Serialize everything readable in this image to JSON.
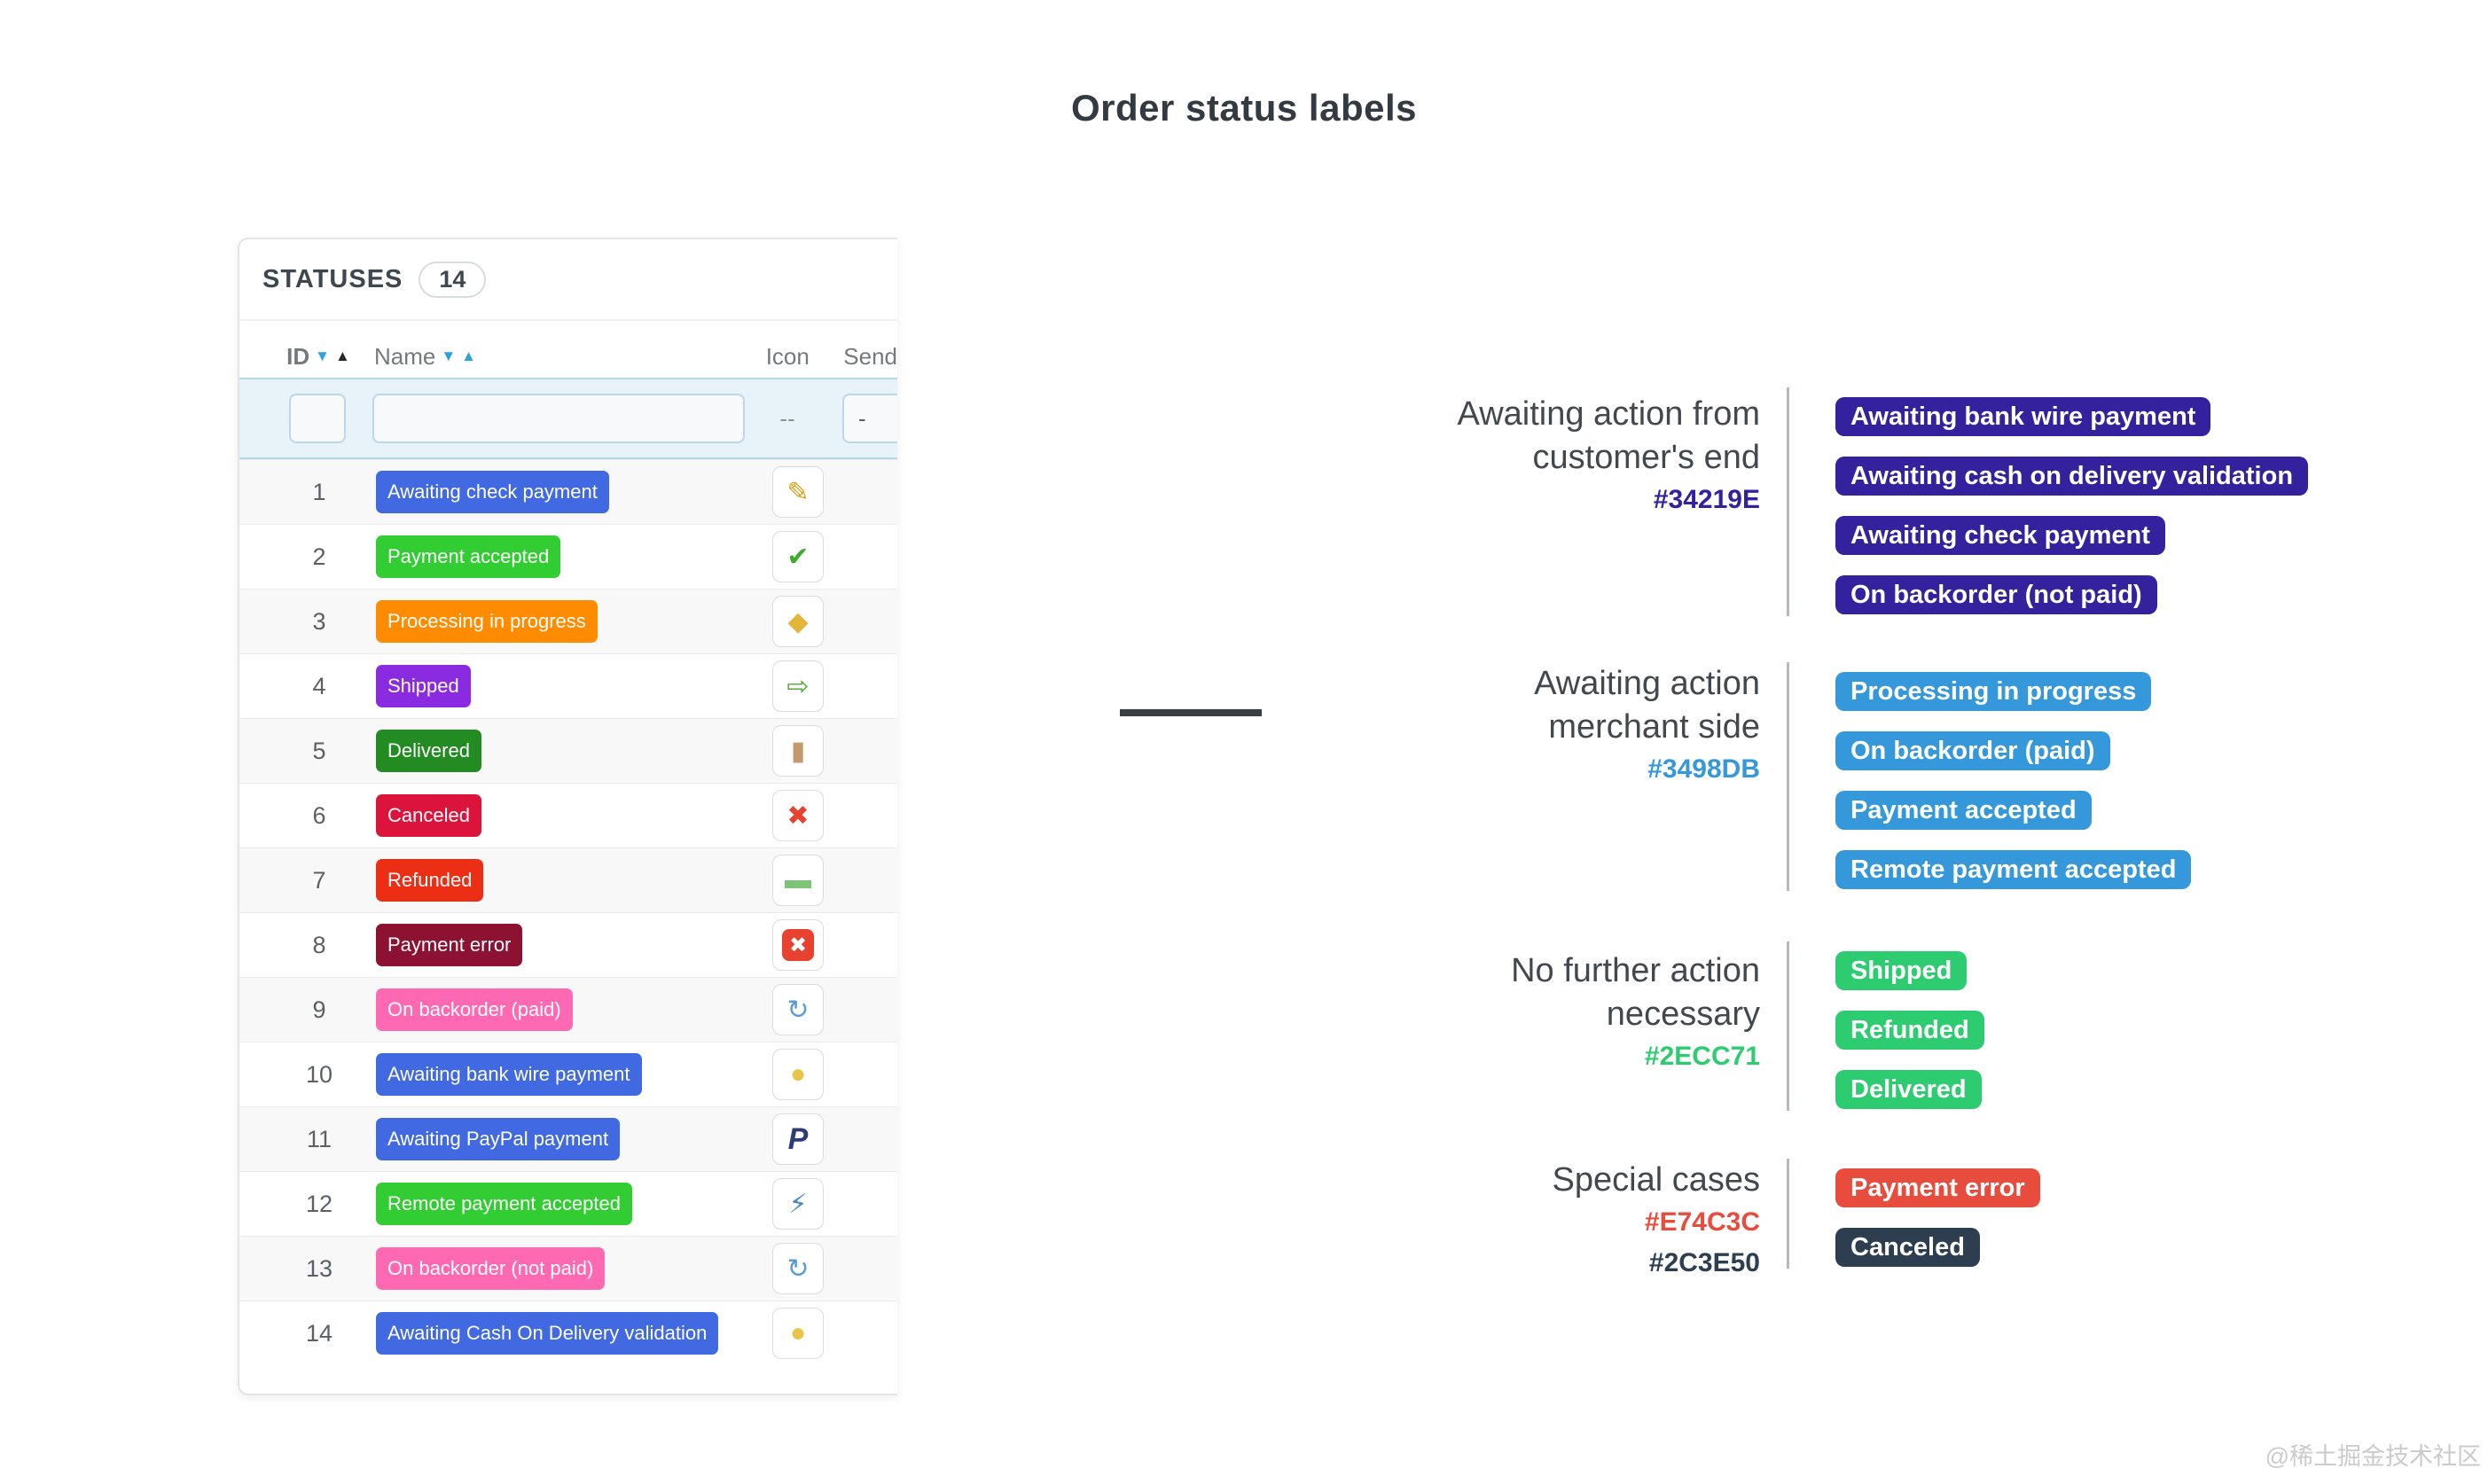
{
  "title": "Order status labels",
  "watermark": "@稀土掘金技术社区",
  "panel": {
    "header": "STATUSES",
    "count": "14",
    "columns": [
      {
        "key": "id",
        "label": "ID",
        "sortable": true,
        "arrows": [
          {
            "dir": "down",
            "color": "#2BA3DC"
          },
          {
            "dir": "up",
            "color": "#26282B"
          }
        ]
      },
      {
        "key": "name",
        "label": "Name",
        "sortable": true,
        "arrows": [
          {
            "dir": "down",
            "color": "#2BA3DC"
          },
          {
            "dir": "up",
            "color": "#2BA3DC"
          }
        ]
      },
      {
        "key": "icon",
        "label": "Icon",
        "sortable": false,
        "arrows": []
      },
      {
        "key": "send",
        "label": "Send",
        "sortable": false,
        "arrows": []
      }
    ],
    "filter": {
      "icon_placeholder": "--",
      "send_placeholder": "-"
    },
    "rows": [
      {
        "id": "1",
        "name": "Awaiting check payment",
        "color": "#4169E1",
        "icon": "card-edit-icon",
        "glyph": "✎",
        "glyph_color": "#D4A017"
      },
      {
        "id": "2",
        "name": "Payment accepted",
        "color": "#32CD32",
        "icon": "check-icon",
        "glyph": "✔",
        "glyph_color": "#3DAE2B"
      },
      {
        "id": "3",
        "name": "Processing in progress",
        "color": "#FF8C00",
        "icon": "package-icon",
        "glyph": "◆",
        "glyph_color": "#E3B53A"
      },
      {
        "id": "4",
        "name": "Shipped",
        "color": "#8A2BE2",
        "icon": "truck-icon",
        "glyph": "⇨",
        "glyph_color": "#57A639"
      },
      {
        "id": "5",
        "name": "Delivered",
        "color": "#228B22",
        "icon": "door-icon",
        "glyph": "▮",
        "glyph_color": "#C49A6C"
      },
      {
        "id": "6",
        "name": "Canceled",
        "color": "#DC143C",
        "icon": "cross-icon",
        "glyph": "✖",
        "glyph_color": "#E8412F"
      },
      {
        "id": "7",
        "name": "Refunded",
        "color": "#EC2E15",
        "icon": "banknote-icon",
        "glyph": "▬",
        "glyph_color": "#7CC576"
      },
      {
        "id": "8",
        "name": "Payment error",
        "color": "#8D1130",
        "icon": "error-icon",
        "glyph": "✖",
        "glyph_color": "#FFFFFF",
        "glyph_bg": "#E8412F"
      },
      {
        "id": "9",
        "name": "On backorder (paid)",
        "color": "#FF69B4",
        "icon": "alarm-clock-icon",
        "glyph": "↻",
        "glyph_color": "#5B9BD5"
      },
      {
        "id": "10",
        "name": "Awaiting bank wire payment",
        "color": "#4169E1",
        "icon": "coins-icon",
        "glyph": "●",
        "glyph_color": "#E8C547"
      },
      {
        "id": "11",
        "name": "Awaiting PayPal payment",
        "color": "#4169E1",
        "icon": "paypal-icon",
        "glyph": "P",
        "glyph_color": "#2C3E7A"
      },
      {
        "id": "12",
        "name": "Remote payment accepted",
        "color": "#32CD32",
        "icon": "plug-icon",
        "glyph": "⚡",
        "glyph_color": "#4A86C8"
      },
      {
        "id": "13",
        "name": "On backorder (not paid)",
        "color": "#FF69B4",
        "icon": "alarm-clock-icon",
        "glyph": "↻",
        "glyph_color": "#5B9BD5"
      },
      {
        "id": "14",
        "name": "Awaiting Cash On Delivery validation",
        "color": "#4169E1",
        "icon": "coins-icon",
        "glyph": "●",
        "glyph_color": "#E8C547"
      }
    ]
  },
  "groups": [
    {
      "heading_lines": [
        "Awaiting action from",
        "customer's end"
      ],
      "hex_codes": [
        {
          "text": "#34219E",
          "color": "#34219E"
        }
      ],
      "labels": [
        {
          "text": "Awaiting bank wire payment",
          "color": "#34219E"
        },
        {
          "text": "Awaiting cash on delivery validation",
          "color": "#34219E"
        },
        {
          "text": "Awaiting check payment",
          "color": "#34219E"
        },
        {
          "text": "On backorder (not paid)",
          "color": "#34219E"
        }
      ]
    },
    {
      "heading_lines": [
        "Awaiting action",
        "merchant side"
      ],
      "hex_codes": [
        {
          "text": "#3498DB",
          "color": "#3498DB"
        }
      ],
      "labels": [
        {
          "text": "Processing in progress",
          "color": "#3498DB"
        },
        {
          "text": "On backorder (paid)",
          "color": "#3498DB"
        },
        {
          "text": "Payment accepted",
          "color": "#3498DB"
        },
        {
          "text": "Remote payment accepted",
          "color": "#3498DB"
        }
      ]
    },
    {
      "heading_lines": [
        "No further action",
        "necessary"
      ],
      "hex_codes": [
        {
          "text": "#2ECC71",
          "color": "#2ECC71"
        }
      ],
      "labels": [
        {
          "text": "Shipped",
          "color": "#2ECC71"
        },
        {
          "text": "Refunded",
          "color": "#2ECC71"
        },
        {
          "text": "Delivered",
          "color": "#2ECC71"
        }
      ]
    },
    {
      "heading_lines": [
        "Special cases"
      ],
      "hex_codes": [
        {
          "text": "#E74C3C",
          "color": "#E74C3C"
        },
        {
          "text": "#2C3E50",
          "color": "#2C3E50"
        }
      ],
      "labels": [
        {
          "text": "Payment error",
          "color": "#E74C3C"
        },
        {
          "text": "Canceled",
          "color": "#2C3E50"
        }
      ]
    }
  ]
}
